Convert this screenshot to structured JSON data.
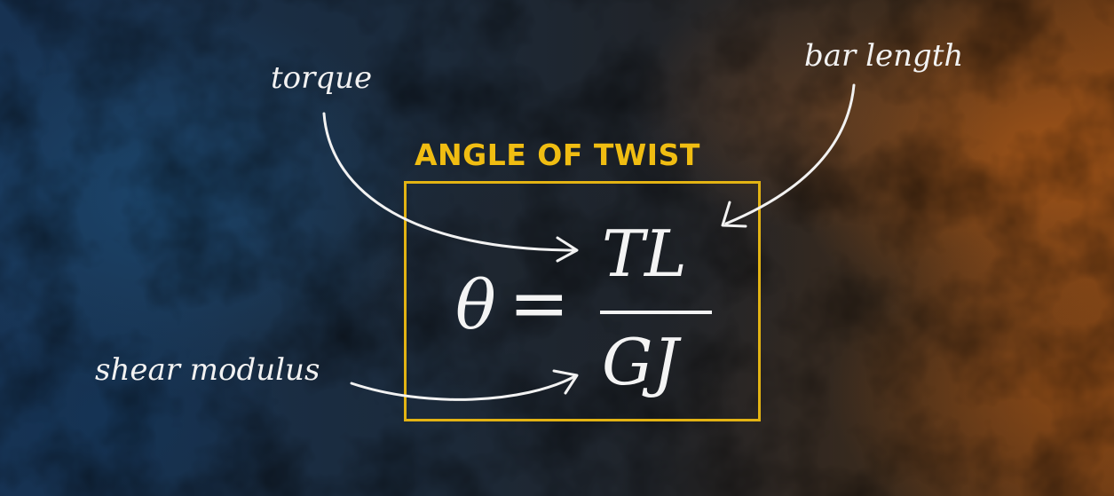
{
  "labels": {
    "torque": "torque",
    "bar_length": "bar length",
    "shear_modulus": "shear modulus"
  },
  "box": {
    "title": "ANGLE OF TWIST",
    "accent_color": "#e3b313"
  },
  "formula": {
    "lhs": "θ",
    "equals": "=",
    "numerator": "TL",
    "denominator": "GJ"
  }
}
